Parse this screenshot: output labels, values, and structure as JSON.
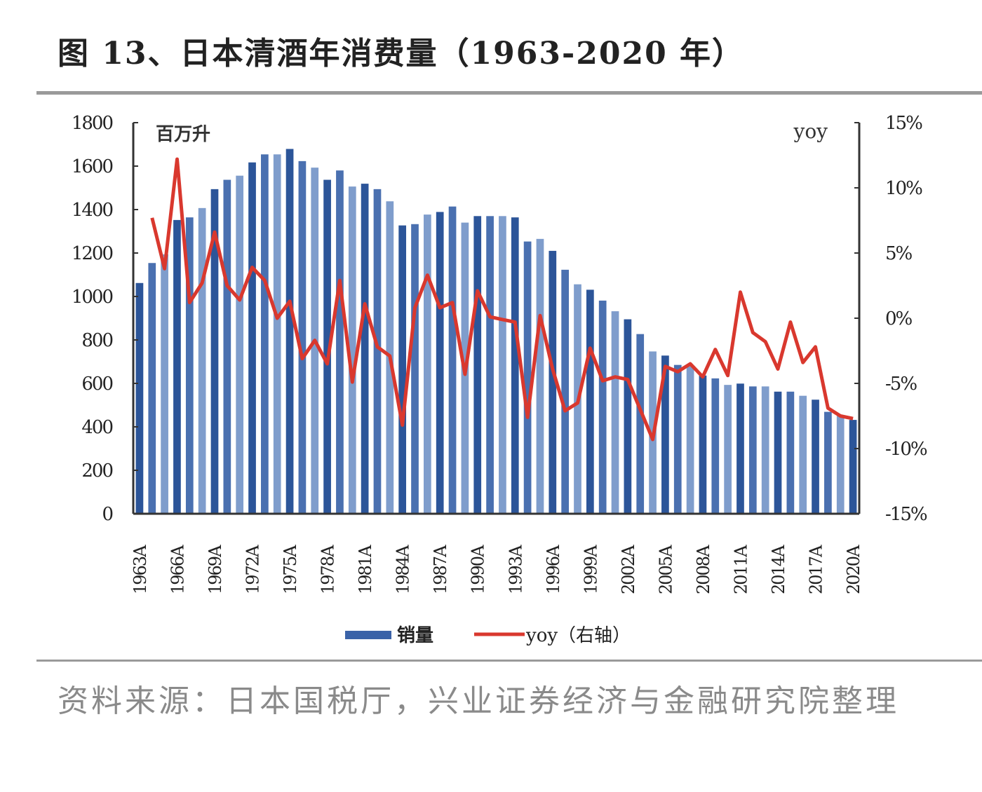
{
  "title": "图 13、日本清酒年消费量（1963-2020 年）",
  "source": "资料来源：日本国税厅，兴业证券经济与金融研究院整理",
  "chart_data": {
    "type": "bar+line",
    "title": "图 13、日本清酒年消费量（1963-2020 年）",
    "left_unit_label": "百万升",
    "right_unit_label": "yoy",
    "ylim_left": [
      0,
      1800
    ],
    "yticks_left": [
      "0",
      "200",
      "400",
      "600",
      "800",
      "1000",
      "1200",
      "1400",
      "1600",
      "1800"
    ],
    "ylim_right": [
      -15,
      15
    ],
    "yticks_right": [
      "-15%",
      "-10%",
      "-5%",
      "0%",
      "5%",
      "10%",
      "15%"
    ],
    "x": [
      "1963A",
      "1964A",
      "1965A",
      "1966A",
      "1967A",
      "1968A",
      "1969A",
      "1970A",
      "1971A",
      "1972A",
      "1973A",
      "1974A",
      "1975A",
      "1976A",
      "1977A",
      "1978A",
      "1979A",
      "1980A",
      "1981A",
      "1982A",
      "1983A",
      "1984A",
      "1985A",
      "1986A",
      "1987A",
      "1988A",
      "1989A",
      "1990A",
      "1991A",
      "1992A",
      "1993A",
      "1994A",
      "1995A",
      "1996A",
      "1997A",
      "1998A",
      "1999A",
      "2000A",
      "2001A",
      "2002A",
      "2003A",
      "2004A",
      "2005A",
      "2006A",
      "2007A",
      "2008A",
      "2009A",
      "2010A",
      "2011A",
      "2012A",
      "2013A",
      "2014A",
      "2015A",
      "2016A",
      "2017A",
      "2018A",
      "2019A",
      "2020A"
    ],
    "xtick_labels": [
      "1963A",
      "1966A",
      "1969A",
      "1972A",
      "1975A",
      "1978A",
      "1981A",
      "1984A",
      "1987A",
      "1990A",
      "1993A",
      "1996A",
      "1999A",
      "2002A",
      "2005A",
      "2008A",
      "2011A",
      "2014A",
      "2017A",
      "2020A"
    ],
    "series": [
      {
        "name": "销量",
        "type": "bar",
        "axis": "left",
        "color": "#3b63a8",
        "values": [
          1062,
          1154,
          1194,
          1352,
          1364,
          1407,
          1494,
          1537,
          1556,
          1617,
          1654,
          1654,
          1679,
          1623,
          1593,
          1537,
          1580,
          1506,
          1519,
          1494,
          1438,
          1327,
          1333,
          1377,
          1389,
          1414,
          1340,
          1370,
          1370,
          1370,
          1364,
          1253,
          1265,
          1210,
          1123,
          1056,
          1031,
          981,
          932,
          895,
          827,
          747,
          728,
          685,
          679,
          636,
          623,
          593,
          599,
          586,
          586,
          562,
          562,
          543,
          525,
          469,
          451,
          432
        ]
      },
      {
        "name": "yoy（右轴）",
        "type": "line",
        "axis": "right",
        "color": "#d9382e",
        "values": [
          null,
          7.7,
          3.8,
          12.2,
          1.2,
          2.7,
          6.6,
          2.5,
          1.4,
          3.9,
          2.9,
          0.0,
          1.3,
          -3.1,
          -1.7,
          -3.5,
          2.9,
          -4.9,
          1.1,
          -2.2,
          -2.9,
          -8.2,
          0.8,
          3.3,
          0.8,
          1.2,
          -4.3,
          2.1,
          0.1,
          -0.1,
          -0.3,
          -7.6,
          0.2,
          -3.9,
          -7.1,
          -6.5,
          -2.3,
          -4.8,
          -4.5,
          -4.7,
          -7.0,
          -9.3,
          -3.7,
          -4.1,
          -3.5,
          -4.5,
          -2.4,
          -4.4,
          2.0,
          -1.1,
          -1.8,
          -3.9,
          -0.3,
          -3.4,
          -2.2,
          -6.9,
          -7.5,
          -7.7
        ]
      }
    ],
    "legend": [
      "销量",
      "yoy（右轴）"
    ],
    "legend_position": "bottom",
    "grid": false
  }
}
